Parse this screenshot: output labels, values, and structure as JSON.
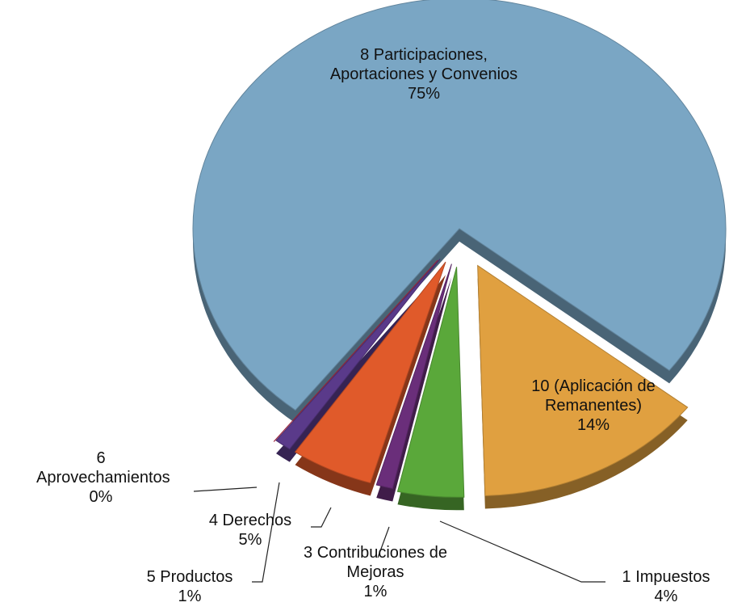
{
  "chart_data": {
    "type": "pie",
    "categories": [
      "10 (Aplicación de Remanentes)",
      "1 Impuestos",
      "3 Contribuciones de Mejoras",
      "4 Derechos",
      "5 Productos",
      "6 Aprovechamientos",
      "8 Participaciones, Aportaciones y Convenios"
    ],
    "values": [
      14,
      4,
      1,
      5,
      1,
      0,
      75
    ],
    "value_labels": [
      "14%",
      "4%",
      "1%",
      "5%",
      "1%",
      "0%",
      "75%"
    ],
    "colors": [
      "#e0a040",
      "#5aa83a",
      "#6a2e7a",
      "#e05a2a",
      "#5a3a8a",
      "#c02040",
      "#7aa6c4"
    ]
  }
}
